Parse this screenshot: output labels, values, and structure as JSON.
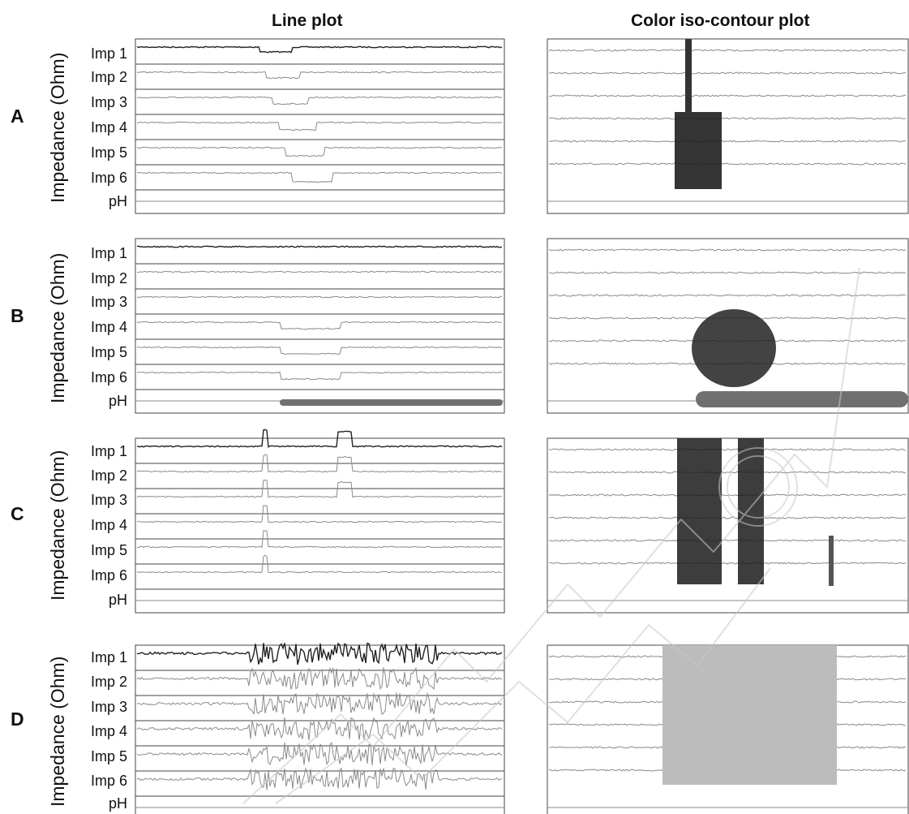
{
  "column_titles": {
    "line": "Line plot",
    "contour": "Color iso-contour plot"
  },
  "y_axis_label": "Impedance (Ohm)",
  "channel_labels": [
    "Imp 1",
    "Imp 2",
    "Imp 3",
    "Imp 4",
    "Imp 5",
    "Imp 6",
    "pH"
  ],
  "panels": [
    {
      "letter": "A",
      "pattern": "liquid-bolus"
    },
    {
      "letter": "B",
      "pattern": "acid-reflux"
    },
    {
      "letter": "C",
      "pattern": "gas-spikes"
    },
    {
      "letter": "D",
      "pattern": "mixed-artifact"
    }
  ],
  "colors": {
    "frame": "#444444",
    "trace_dark": "#222222",
    "trace_light": "#8a8a8a",
    "ph_band": "#707070",
    "mixed_fill": "#bcbcbc"
  }
}
